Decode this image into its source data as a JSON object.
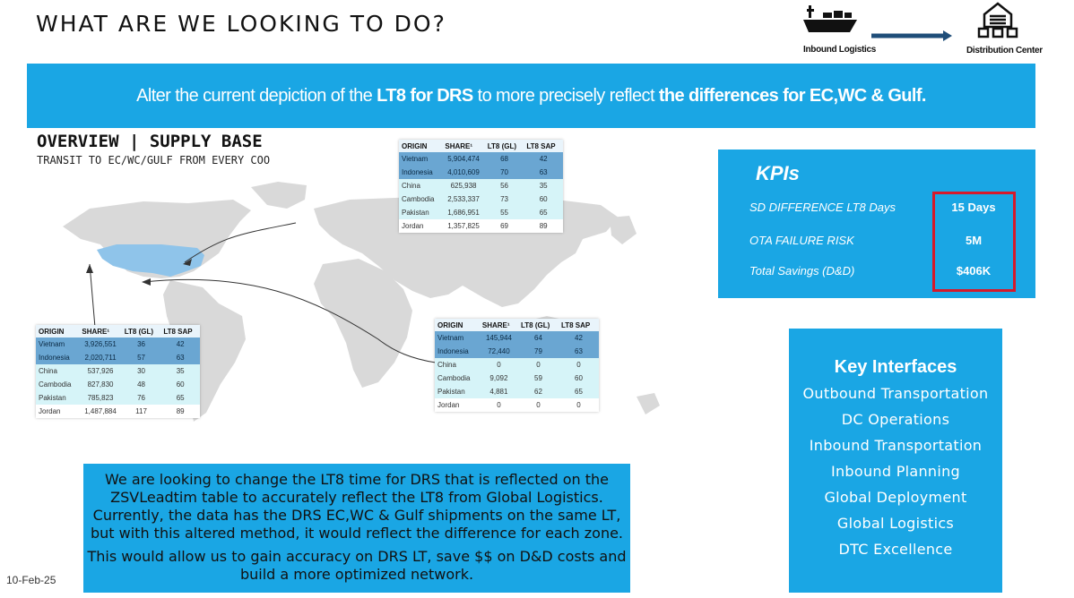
{
  "title": "WHAT ARE WE LOOKING TO DO?",
  "flow": {
    "from_label": "Inbound Logistics",
    "to_label": "Distribution Center"
  },
  "banner": {
    "p1": "Alter the current depiction of the ",
    "b1": "LT8 for DRS",
    "p2": " to more precisely reflect ",
    "b2": "the differences for EC,WC & Gulf."
  },
  "overview": {
    "title": "OVERVIEW | SUPPLY BASE",
    "subtitle": "TRANSIT TO EC/WC/GULF FROM EVERY COO"
  },
  "tables": {
    "headers": [
      "ORIGIN",
      "SHARE¹",
      "LT8 (GL)",
      "LT8 SAP"
    ],
    "ec": [
      [
        "Vietnam",
        "5,904,474",
        "68",
        "42"
      ],
      [
        "Indonesia",
        "4,010,609",
        "70",
        "63"
      ],
      [
        "China",
        "625,938",
        "56",
        "35"
      ],
      [
        "Cambodia",
        "2,533,337",
        "73",
        "60"
      ],
      [
        "Pakistan",
        "1,686,951",
        "55",
        "65"
      ],
      [
        "Jordan",
        "1,357,825",
        "69",
        "89"
      ]
    ],
    "wc": [
      [
        "Vietnam",
        "3,926,551",
        "36",
        "42"
      ],
      [
        "Indonesia",
        "2,020,711",
        "57",
        "63"
      ],
      [
        "China",
        "537,926",
        "30",
        "35"
      ],
      [
        "Cambodia",
        "827,830",
        "48",
        "60"
      ],
      [
        "Pakistan",
        "785,823",
        "76",
        "65"
      ],
      [
        "Jordan",
        "1,487,884",
        "117",
        "89"
      ]
    ],
    "gulf": [
      [
        "Vietnam",
        "145,944",
        "64",
        "42"
      ],
      [
        "Indonesia",
        "72,440",
        "79",
        "63"
      ],
      [
        "China",
        "0",
        "0",
        "0"
      ],
      [
        "Cambodia",
        "9,092",
        "59",
        "60"
      ],
      [
        "Pakistan",
        "4,881",
        "62",
        "65"
      ],
      [
        "Jordan",
        "0",
        "0",
        "0"
      ]
    ]
  },
  "kpis": {
    "heading": "KPIs",
    "rows": [
      {
        "label": "SD DIFFERENCE LT8 Days",
        "value": "15 Days"
      },
      {
        "label": "OTA FAILURE RISK",
        "value": "5M"
      },
      {
        "label": "Total Savings (D&D)",
        "value": "$406K"
      }
    ],
    "highlight_color": "#d6192a"
  },
  "key_interfaces": {
    "heading": "Key Interfaces",
    "items": [
      "Outbound Transportation",
      "DC Operations",
      "Inbound Transportation",
      "Inbound Planning",
      "Global Deployment",
      "Global Logistics",
      "DTC Excellence"
    ]
  },
  "note": {
    "p1": "We are looking to change the LT8 time for DRS that is reflected on the ZSVLeadtim table to accurately reflect the LT8 from Global Logistics. Currently, the data has the DRS EC,WC & Gulf shipments on the same LT, but with this altered method, it would reflect the difference for each zone.",
    "p2": "This would allow us to gain accuracy on DRS LT, save $$ on D&D costs and build a more optimized network."
  },
  "date": "10-Feb-25",
  "colors": {
    "accent": "#1aa6e4",
    "map": "#d9d9d9",
    "us": "#8fc4ea",
    "arrow": "#1f4e79"
  }
}
